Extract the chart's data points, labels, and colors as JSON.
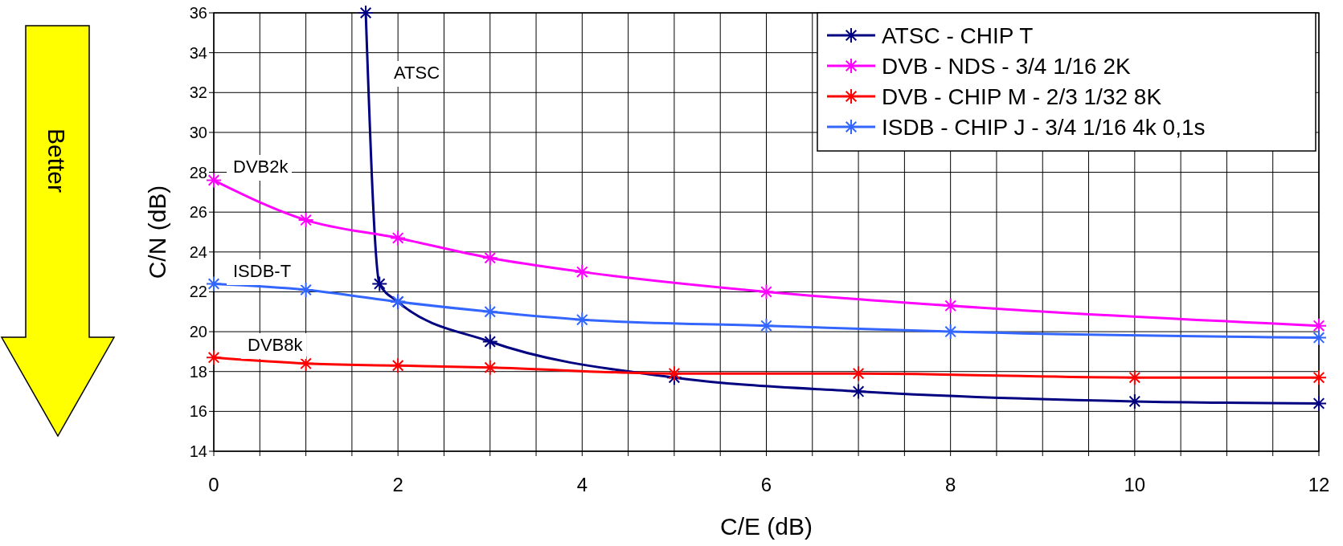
{
  "chart_data": {
    "type": "line",
    "xlabel": "C/E (dB)",
    "ylabel": "C/N (dB)",
    "xlim": [
      0,
      12
    ],
    "ylim": [
      14,
      36
    ],
    "xticks": [
      0,
      {
        "value": 0.5,
        "label": null
      },
      {
        "value": 1,
        "label": null
      },
      {
        "value": 1.5,
        "label": null
      },
      2,
      {
        "value": 2.5,
        "label": null
      },
      {
        "value": 3,
        "label": null
      },
      {
        "value": 3.5,
        "label": null
      },
      4,
      {
        "value": 4.5,
        "label": null
      },
      {
        "value": 5,
        "label": null
      },
      {
        "value": 5.5,
        "label": null
      },
      6,
      {
        "value": 6.5,
        "label": null
      },
      {
        "value": 7,
        "label": null
      },
      {
        "value": 7.5,
        "label": null
      },
      8,
      {
        "value": 8.5,
        "label": null
      },
      {
        "value": 9,
        "label": null
      },
      {
        "value": 9.5,
        "label": null
      },
      10,
      {
        "value": 10.5,
        "label": null
      },
      {
        "value": 11,
        "label": null
      },
      {
        "value": 11.5,
        "label": null
      },
      12
    ],
    "yticks": [
      14,
      16,
      18,
      20,
      22,
      24,
      26,
      28,
      30,
      32,
      34,
      36
    ],
    "grid": true,
    "legend": "top right",
    "marker": "cross",
    "line_style": "solid",
    "series": [
      {
        "name": "ATSC - CHIP T",
        "color": "#000080",
        "x": [
          1.65,
          1.8,
          2,
          3,
          5,
          7,
          10,
          12
        ],
        "values": [
          36,
          22.4,
          21.5,
          19.5,
          17.7,
          17.0,
          16.5,
          16.4
        ]
      },
      {
        "name": "DVB - NDS - 3/4 1/16 2K",
        "color": "#ff00ff",
        "x": [
          0,
          1,
          2,
          3,
          4,
          6,
          8,
          12
        ],
        "values": [
          27.6,
          25.6,
          24.7,
          23.7,
          23.0,
          22.0,
          21.3,
          20.3
        ]
      },
      {
        "name": "DVB - CHIP M - 2/3 1/32 8K",
        "color": "#ff0000",
        "x": [
          0,
          1,
          2,
          3,
          5,
          7,
          10,
          12
        ],
        "values": [
          18.7,
          18.4,
          18.3,
          18.2,
          17.9,
          17.9,
          17.7,
          17.7
        ]
      },
      {
        "name": "ISDB - CHIP J - 3/4 1/16 4k 0,1s",
        "color": "#3366ff",
        "x": [
          0,
          1,
          2,
          3,
          4,
          6,
          8,
          12
        ],
        "values": [
          22.4,
          22.1,
          21.5,
          21.0,
          20.6,
          20.3,
          20.0,
          19.7
        ]
      }
    ],
    "annotations": [
      "ATSC",
      "DVB2k",
      "ISDB-T",
      "DVB8k",
      "Better"
    ]
  }
}
